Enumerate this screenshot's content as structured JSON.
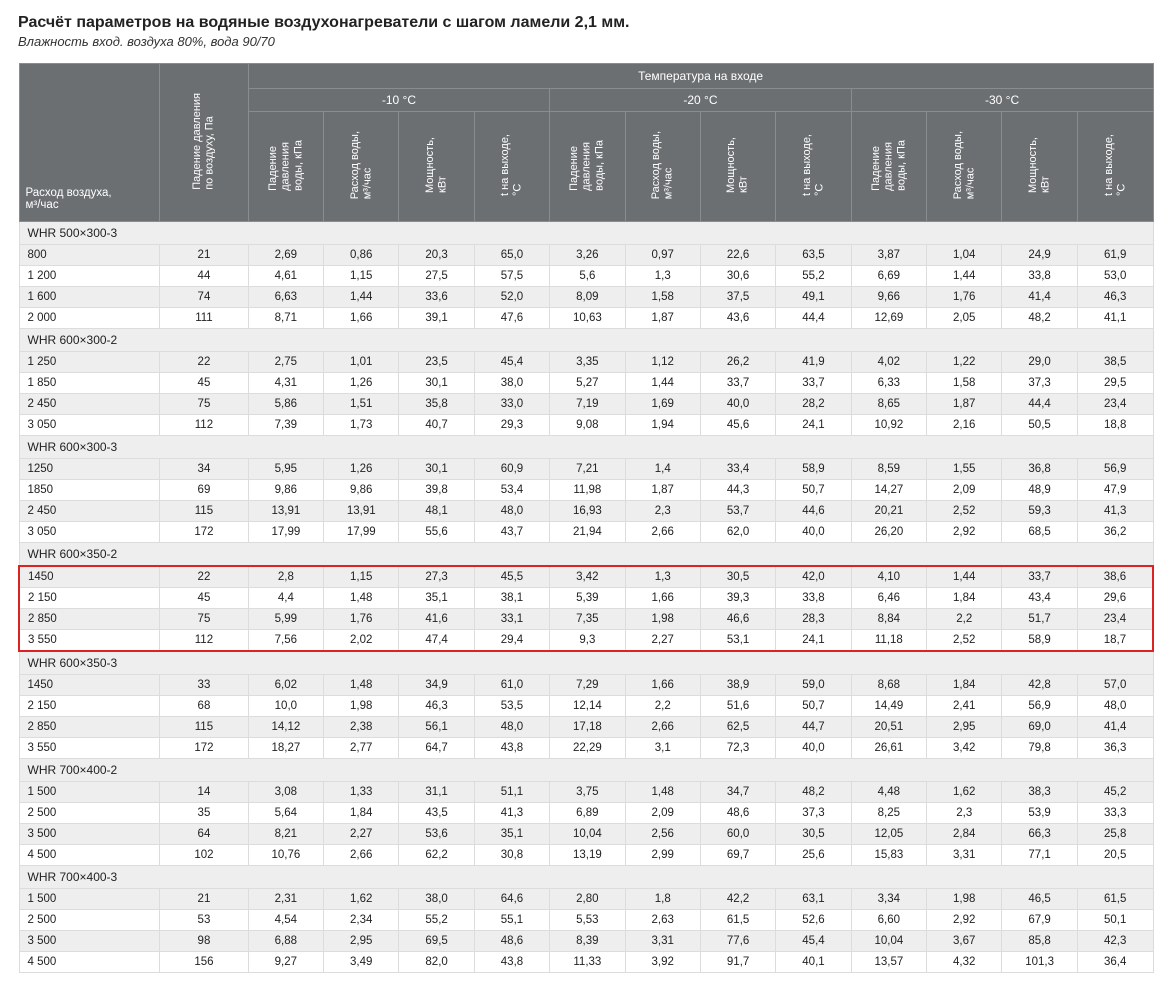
{
  "title": "Расчёт параметров на водяные воздухонагреватели с шагом ламели 2,1 мм.",
  "subtitle": "Влажность вход. воздуха 80%, вода 90/70",
  "header": {
    "row_label": "Расход воздуха,\nм³/час",
    "air_pressure_drop": "Падение давления\nпо воздуху, Па",
    "temp_top": "Температура на входе",
    "temps": [
      "-10 °C",
      "-20 °C",
      "-30 °C"
    ],
    "subcols": [
      "Падение\nдавления\nводы, кПа",
      "Расход воды,\nм³/час",
      "Мощность,\nкВт",
      "t на выходе,\n°C"
    ]
  },
  "highlight_section_index": 3,
  "colors": {
    "header_bg": "#6c6f72",
    "header_border": "#8a8d90",
    "stripe_odd": "#eeeeee",
    "stripe_even": "#ffffff",
    "cell_border": "#dcdcdc",
    "highlight": "#d22",
    "text": "#222222"
  },
  "sections": [
    {
      "name": "WHR 500×300-3",
      "rows": [
        {
          "label": "800",
          "air": "21",
          "t10": [
            "2,69",
            "0,86",
            "20,3",
            "65,0"
          ],
          "t20": [
            "3,26",
            "0,97",
            "22,6",
            "63,5"
          ],
          "t30": [
            "3,87",
            "1,04",
            "24,9",
            "61,9"
          ]
        },
        {
          "label": "1 200",
          "air": "44",
          "t10": [
            "4,61",
            "1,15",
            "27,5",
            "57,5"
          ],
          "t20": [
            "5,6",
            "1,3",
            "30,6",
            "55,2"
          ],
          "t30": [
            "6,69",
            "1,44",
            "33,8",
            "53,0"
          ]
        },
        {
          "label": "1 600",
          "air": "74",
          "t10": [
            "6,63",
            "1,44",
            "33,6",
            "52,0"
          ],
          "t20": [
            "8,09",
            "1,58",
            "37,5",
            "49,1"
          ],
          "t30": [
            "9,66",
            "1,76",
            "41,4",
            "46,3"
          ]
        },
        {
          "label": "2 000",
          "air": "111",
          "t10": [
            "8,71",
            "1,66",
            "39,1",
            "47,6"
          ],
          "t20": [
            "10,63",
            "1,87",
            "43,6",
            "44,4"
          ],
          "t30": [
            "12,69",
            "2,05",
            "48,2",
            "41,1"
          ]
        }
      ]
    },
    {
      "name": "WHR 600×300-2",
      "rows": [
        {
          "label": "1 250",
          "air": "22",
          "t10": [
            "2,75",
            "1,01",
            "23,5",
            "45,4"
          ],
          "t20": [
            "3,35",
            "1,12",
            "26,2",
            "41,9"
          ],
          "t30": [
            "4,02",
            "1,22",
            "29,0",
            "38,5"
          ]
        },
        {
          "label": "1 850",
          "air": "45",
          "t10": [
            "4,31",
            "1,26",
            "30,1",
            "38,0"
          ],
          "t20": [
            "5,27",
            "1,44",
            "33,7",
            "33,7"
          ],
          "t30": [
            "6,33",
            "1,58",
            "37,3",
            "29,5"
          ]
        },
        {
          "label": "2 450",
          "air": "75",
          "t10": [
            "5,86",
            "1,51",
            "35,8",
            "33,0"
          ],
          "t20": [
            "7,19",
            "1,69",
            "40,0",
            "28,2"
          ],
          "t30": [
            "8,65",
            "1,87",
            "44,4",
            "23,4"
          ]
        },
        {
          "label": "3 050",
          "air": "112",
          "t10": [
            "7,39",
            "1,73",
            "40,7",
            "29,3"
          ],
          "t20": [
            "9,08",
            "1,94",
            "45,6",
            "24,1"
          ],
          "t30": [
            "10,92",
            "2,16",
            "50,5",
            "18,8"
          ]
        }
      ]
    },
    {
      "name": "WHR 600×300-3",
      "rows": [
        {
          "label": "1250",
          "air": "34",
          "t10": [
            "5,95",
            "1,26",
            "30,1",
            "60,9"
          ],
          "t20": [
            "7,21",
            "1,4",
            "33,4",
            "58,9"
          ],
          "t30": [
            "8,59",
            "1,55",
            "36,8",
            "56,9"
          ]
        },
        {
          "label": "1850",
          "air": "69",
          "t10": [
            "9,86",
            "9,86",
            "39,8",
            "53,4"
          ],
          "t20": [
            "11,98",
            "1,87",
            "44,3",
            "50,7"
          ],
          "t30": [
            "14,27",
            "2,09",
            "48,9",
            "47,9"
          ]
        },
        {
          "label": "2 450",
          "air": "115",
          "t10": [
            "13,91",
            "13,91",
            "48,1",
            "48,0"
          ],
          "t20": [
            "16,93",
            "2,3",
            "53,7",
            "44,6"
          ],
          "t30": [
            "20,21",
            "2,52",
            "59,3",
            "41,3"
          ]
        },
        {
          "label": "3 050",
          "air": "172",
          "t10": [
            "17,99",
            "17,99",
            "55,6",
            "43,7"
          ],
          "t20": [
            "21,94",
            "2,66",
            "62,0",
            "40,0"
          ],
          "t30": [
            "26,20",
            "2,92",
            "68,5",
            "36,2"
          ]
        }
      ]
    },
    {
      "name": "WHR 600×350-2",
      "rows": [
        {
          "label": "1450",
          "air": "22",
          "t10": [
            "2,8",
            "1,15",
            "27,3",
            "45,5"
          ],
          "t20": [
            "3,42",
            "1,3",
            "30,5",
            "42,0"
          ],
          "t30": [
            "4,10",
            "1,44",
            "33,7",
            "38,6"
          ]
        },
        {
          "label": "2 150",
          "air": "45",
          "t10": [
            "4,4",
            "1,48",
            "35,1",
            "38,1"
          ],
          "t20": [
            "5,39",
            "1,66",
            "39,3",
            "33,8"
          ],
          "t30": [
            "6,46",
            "1,84",
            "43,4",
            "29,6"
          ]
        },
        {
          "label": "2 850",
          "air": "75",
          "t10": [
            "5,99",
            "1,76",
            "41,6",
            "33,1"
          ],
          "t20": [
            "7,35",
            "1,98",
            "46,6",
            "28,3"
          ],
          "t30": [
            "8,84",
            "2,2",
            "51,7",
            "23,4"
          ]
        },
        {
          "label": "3 550",
          "air": "112",
          "t10": [
            "7,56",
            "2,02",
            "47,4",
            "29,4"
          ],
          "t20": [
            "9,3",
            "2,27",
            "53,1",
            "24,1"
          ],
          "t30": [
            "11,18",
            "2,52",
            "58,9",
            "18,7"
          ]
        }
      ]
    },
    {
      "name": "WHR 600×350-3",
      "rows": [
        {
          "label": "1450",
          "air": "33",
          "t10": [
            "6,02",
            "1,48",
            "34,9",
            "61,0"
          ],
          "t20": [
            "7,29",
            "1,66",
            "38,9",
            "59,0"
          ],
          "t30": [
            "8,68",
            "1,84",
            "42,8",
            "57,0"
          ]
        },
        {
          "label": "2 150",
          "air": "68",
          "t10": [
            "10,0",
            "1,98",
            "46,3",
            "53,5"
          ],
          "t20": [
            "12,14",
            "2,2",
            "51,6",
            "50,7"
          ],
          "t30": [
            "14,49",
            "2,41",
            "56,9",
            "48,0"
          ]
        },
        {
          "label": "2 850",
          "air": "115",
          "t10": [
            "14,12",
            "2,38",
            "56,1",
            "48,0"
          ],
          "t20": [
            "17,18",
            "2,66",
            "62,5",
            "44,7"
          ],
          "t30": [
            "20,51",
            "2,95",
            "69,0",
            "41,4"
          ]
        },
        {
          "label": "3 550",
          "air": "172",
          "t10": [
            "18,27",
            "2,77",
            "64,7",
            "43,8"
          ],
          "t20": [
            "22,29",
            "3,1",
            "72,3",
            "40,0"
          ],
          "t30": [
            "26,61",
            "3,42",
            "79,8",
            "36,3"
          ]
        }
      ]
    },
    {
      "name": "WHR 700×400-2",
      "rows": [
        {
          "label": "1 500",
          "air": "14",
          "t10": [
            "3,08",
            "1,33",
            "31,1",
            "51,1"
          ],
          "t20": [
            "3,75",
            "1,48",
            "34,7",
            "48,2"
          ],
          "t30": [
            "4,48",
            "1,62",
            "38,3",
            "45,2"
          ]
        },
        {
          "label": "2 500",
          "air": "35",
          "t10": [
            "5,64",
            "1,84",
            "43,5",
            "41,3"
          ],
          "t20": [
            "6,89",
            "2,09",
            "48,6",
            "37,3"
          ],
          "t30": [
            "8,25",
            "2,3",
            "53,9",
            "33,3"
          ]
        },
        {
          "label": "3 500",
          "air": "64",
          "t10": [
            "8,21",
            "2,27",
            "53,6",
            "35,1"
          ],
          "t20": [
            "10,04",
            "2,56",
            "60,0",
            "30,5"
          ],
          "t30": [
            "12,05",
            "2,84",
            "66,3",
            "25,8"
          ]
        },
        {
          "label": "4 500",
          "air": "102",
          "t10": [
            "10,76",
            "2,66",
            "62,2",
            "30,8"
          ],
          "t20": [
            "13,19",
            "2,99",
            "69,7",
            "25,6"
          ],
          "t30": [
            "15,83",
            "3,31",
            "77,1",
            "20,5"
          ]
        }
      ]
    },
    {
      "name": "WHR 700×400-3",
      "rows": [
        {
          "label": "1 500",
          "air": "21",
          "t10": [
            "2,31",
            "1,62",
            "38,0",
            "64,6"
          ],
          "t20": [
            "2,80",
            "1,8",
            "42,2",
            "63,1"
          ],
          "t30": [
            "3,34",
            "1,98",
            "46,5",
            "61,5"
          ]
        },
        {
          "label": "2 500",
          "air": "53",
          "t10": [
            "4,54",
            "2,34",
            "55,2",
            "55,1"
          ],
          "t20": [
            "5,53",
            "2,63",
            "61,5",
            "52,6"
          ],
          "t30": [
            "6,60",
            "2,92",
            "67,9",
            "50,1"
          ]
        },
        {
          "label": "3 500",
          "air": "98",
          "t10": [
            "6,88",
            "2,95",
            "69,5",
            "48,6"
          ],
          "t20": [
            "8,39",
            "3,31",
            "77,6",
            "45,4"
          ],
          "t30": [
            "10,04",
            "3,67",
            "85,8",
            "42,3"
          ]
        },
        {
          "label": "4 500",
          "air": "156",
          "t10": [
            "9,27",
            "3,49",
            "82,0",
            "43,8"
          ],
          "t20": [
            "11,33",
            "3,92",
            "91,7",
            "40,1"
          ],
          "t30": [
            "13,57",
            "4,32",
            "101,3",
            "36,4"
          ]
        }
      ]
    }
  ]
}
